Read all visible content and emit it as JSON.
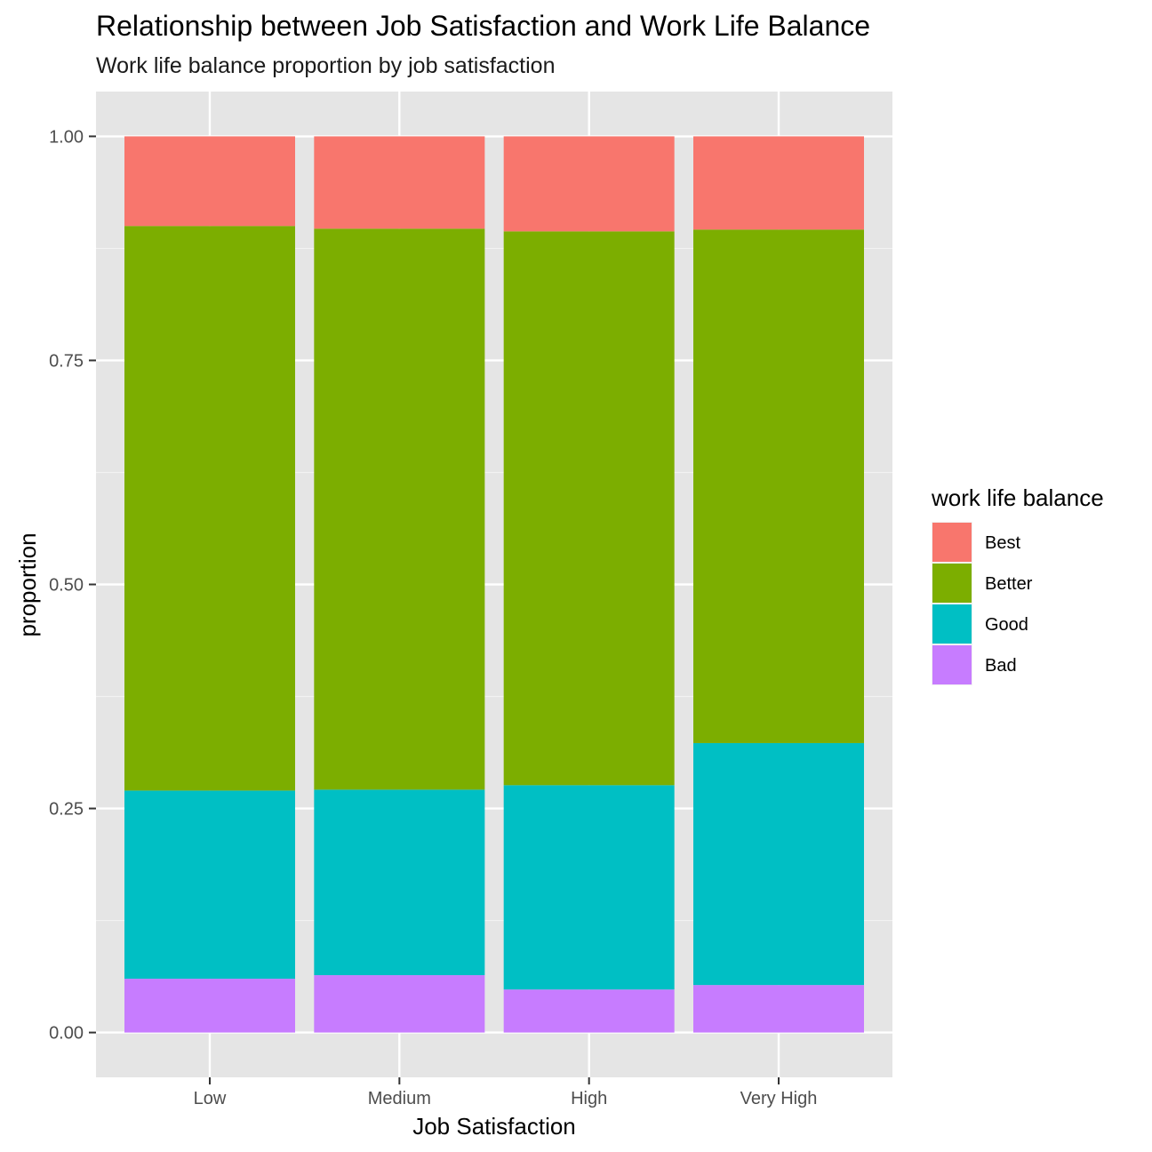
{
  "chart_data": {
    "type": "bar",
    "stacked": true,
    "title": "Relationship between Job Satisfaction and Work Life Balance",
    "subtitle": "Work life balance proportion by job satisfaction",
    "xlabel": "Job Satisfaction",
    "ylabel": "proportion",
    "ylim": [
      -0.05,
      1.05
    ],
    "yticks": [
      0.0,
      0.25,
      0.5,
      0.75,
      1.0
    ],
    "ytick_labels": [
      "0.00",
      "0.25",
      "0.50",
      "0.75",
      "1.00"
    ],
    "categories": [
      "Low",
      "Medium",
      "High",
      "Very High"
    ],
    "series": [
      {
        "name": "Bad",
        "color": "#C77CFF",
        "values": [
          0.06,
          0.064,
          0.048,
          0.053
        ]
      },
      {
        "name": "Good",
        "color": "#00BFC4",
        "values": [
          0.21,
          0.207,
          0.228,
          0.27
        ]
      },
      {
        "name": "Better",
        "color": "#7CAE00",
        "values": [
          0.63,
          0.626,
          0.618,
          0.573
        ]
      },
      {
        "name": "Best",
        "color": "#F8766D",
        "values": [
          0.1,
          0.103,
          0.106,
          0.104
        ]
      }
    ],
    "legend": {
      "title": "work life balance",
      "position": "right",
      "order": [
        "Best",
        "Better",
        "Good",
        "Bad"
      ]
    },
    "grid": true
  }
}
